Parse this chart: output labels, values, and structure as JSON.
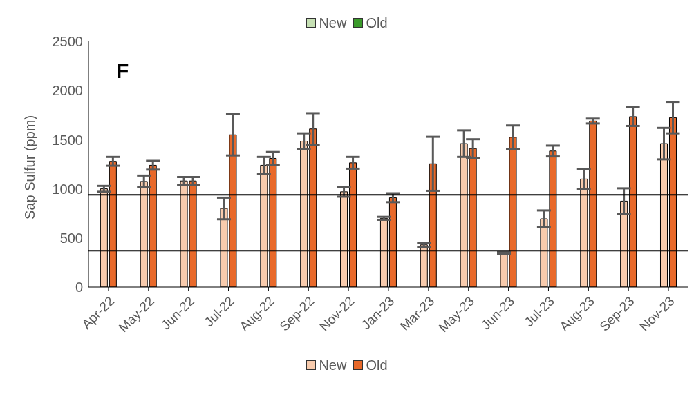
{
  "chart_data": {
    "type": "bar",
    "ylabel": "Sap Sulfur (ppm)",
    "categories": [
      "Apr-22",
      "May-22",
      "Jun-22",
      "Jul-22",
      "Aug-22",
      "Sep-22",
      "Nov-22",
      "Jan-23",
      "Mar-23",
      "May-23",
      "Jun-23",
      "Jul-23",
      "Aug-23",
      "Sep-23",
      "Nov-23"
    ],
    "series": [
      {
        "name": "New",
        "color": "#c6e0b4",
        "values": [
          null,
          null,
          null,
          null,
          null,
          null,
          null,
          null,
          null,
          null,
          null,
          null,
          null,
          null,
          null
        ]
      },
      {
        "name": "Old",
        "color": "#3a9a2a",
        "values": [
          null,
          null,
          null,
          null,
          null,
          null,
          null,
          null,
          null,
          null,
          null,
          null,
          null,
          null,
          null
        ]
      },
      {
        "name": "New",
        "color": "#f8cbad",
        "values": [
          1000,
          1075,
          1080,
          800,
          1240,
          1485,
          970,
          700,
          430,
          1460,
          350,
          695,
          1100,
          875,
          1460
        ],
        "errors": [
          30,
          60,
          40,
          110,
          85,
          80,
          50,
          15,
          20,
          135,
          10,
          85,
          100,
          130,
          160
        ]
      },
      {
        "name": "Old",
        "color": "#e8692a",
        "values": [
          1280,
          1240,
          1080,
          1550,
          1310,
          1610,
          1265,
          910,
          1255,
          1410,
          1525,
          1385,
          1690,
          1735,
          1725
        ],
        "errors": [
          45,
          45,
          40,
          210,
          65,
          160,
          60,
          45,
          275,
          95,
          120,
          55,
          25,
          95,
          160
        ]
      }
    ],
    "ylim": [
      0,
      2500
    ],
    "yticks": [
      0,
      500,
      1000,
      1500,
      2000,
      2500
    ],
    "ref_lines": [
      {
        "axis": "y",
        "value": 940,
        "color": "#000000"
      },
      {
        "axis": "y",
        "value": 370,
        "color": "#000000"
      }
    ],
    "annotations": [
      "F"
    ],
    "grid": false,
    "legend": "bottom"
  }
}
